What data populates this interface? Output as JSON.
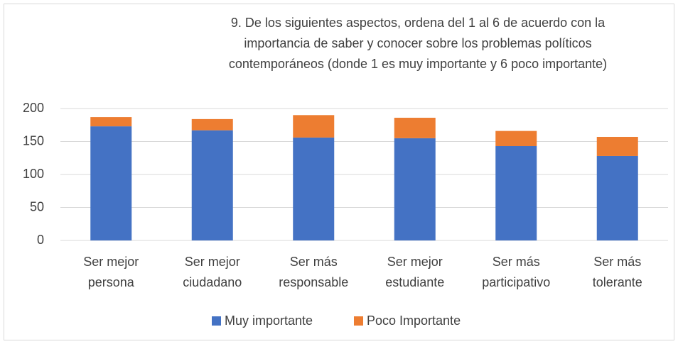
{
  "chart_data": {
    "type": "bar",
    "stacked": true,
    "title": [
      "9. De los siguientes aspectos, ordena del 1 al 6 de acuerdo con la",
      "importancia de saber y conocer sobre los problemas políticos",
      "contemporáneos (donde 1 es muy importante y 6 poco importante)"
    ],
    "categories": [
      [
        "Ser mejor",
        "persona"
      ],
      [
        "Ser mejor",
        "ciudadano"
      ],
      [
        "Ser más",
        "responsable"
      ],
      [
        "Ser mejor",
        "estudiante"
      ],
      [
        "Ser más",
        "participativo"
      ],
      [
        "Ser más",
        "tolerante"
      ]
    ],
    "series": [
      {
        "name": "Muy importante",
        "color": "#4472c4",
        "values": [
          173,
          167,
          156,
          155,
          143,
          128
        ]
      },
      {
        "name": "Poco Importante",
        "color": "#ed7d31",
        "values": [
          14,
          17,
          34,
          31,
          23,
          29
        ]
      }
    ],
    "ylim": [
      0,
      200
    ],
    "yticks": [
      0,
      50,
      100,
      150,
      200
    ],
    "grid": true,
    "legend": "bottom"
  }
}
